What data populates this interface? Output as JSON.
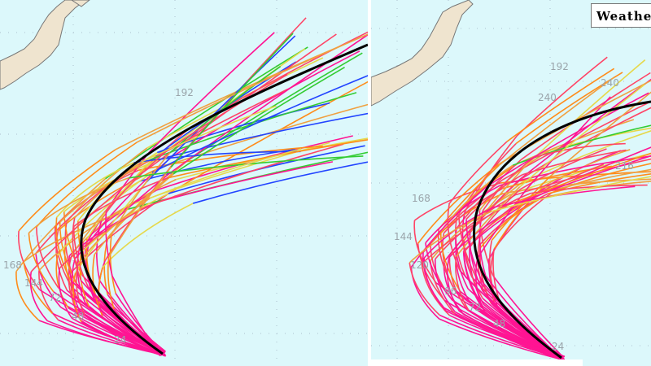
{
  "watermark": "Weathe",
  "left_panel": {
    "hour_labels": [
      "192",
      "168",
      "144",
      "72",
      "48",
      "24"
    ],
    "mean_track_color": "#000000"
  },
  "right_panel": {
    "hour_labels": [
      "192",
      "240",
      "240",
      "216",
      "168",
      "144",
      "120",
      "96",
      "72",
      "48",
      "24"
    ],
    "mean_track_color": "#000000"
  },
  "colors": {
    "ocean": "#dcf8fb",
    "land": "#efe4cf",
    "track_palette": [
      "#ff1493",
      "#ff4466",
      "#ff8c1a",
      "#f0a040",
      "#e6d84a",
      "#33cc33",
      "#2244ff"
    ]
  }
}
